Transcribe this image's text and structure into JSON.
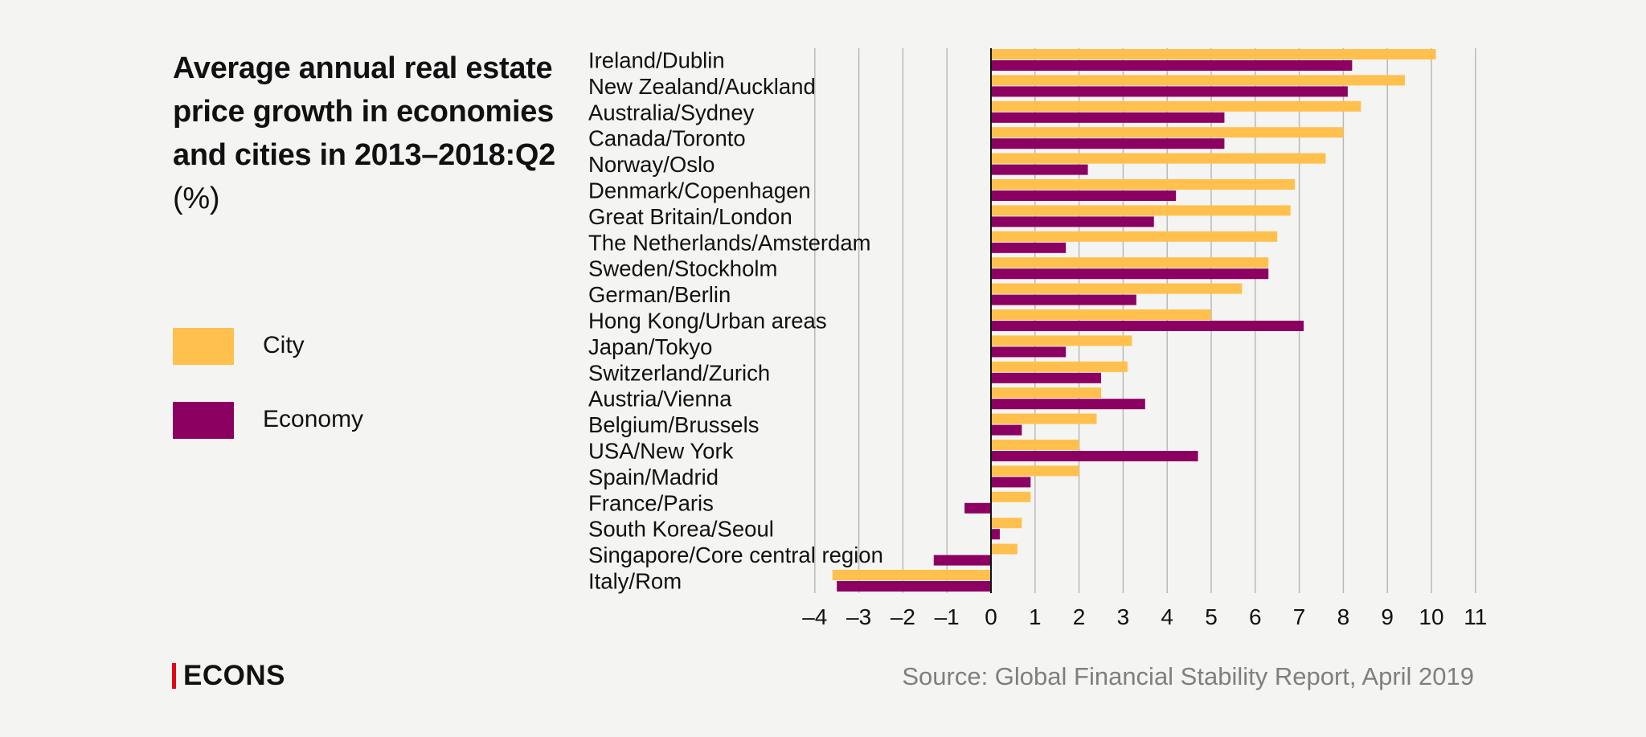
{
  "title": {
    "main": "Average annual real estate price growth in economies and cities in 2013–2018:Q2",
    "unit": "(%)"
  },
  "legend": {
    "city": "City",
    "economy": "Economy"
  },
  "colors": {
    "city": "#ffc04d",
    "economy": "#8c0061",
    "grid": "#b9b9b9",
    "background": "#f4f4f2",
    "logo_accent": "#e30613"
  },
  "logo": "ECONS",
  "source": "Source: Global Financial Stability Report, April 2019",
  "chart_data": {
    "type": "bar",
    "orientation": "horizontal",
    "categories": [
      "Ireland/Dublin",
      "New Zealand/Auckland",
      "Australia/Sydney",
      "Canada/Toronto",
      "Norway/Oslo",
      "Denmark/Copenhagen",
      "Great Britain/London",
      "The Netherlands/Amsterdam",
      "Sweden/Stockholm",
      "German/Berlin",
      "Hong Kong/Urban areas",
      "Japan/Tokyo",
      "Switzerland/Zurich",
      "Austria/Vienna",
      "Belgium/Brussels",
      "USA/New York",
      "Spain/Madrid",
      "France/Paris",
      "South Korea/Seoul",
      "Singapore/Core central region",
      "Italy/Rom"
    ],
    "series": [
      {
        "name": "City",
        "values": [
          10.1,
          9.4,
          8.4,
          8.0,
          7.6,
          6.9,
          6.8,
          6.5,
          6.3,
          5.7,
          5.0,
          3.2,
          3.1,
          2.5,
          2.4,
          2.0,
          2.0,
          0.9,
          0.7,
          0.6,
          -3.6
        ]
      },
      {
        "name": "Economy",
        "values": [
          8.2,
          8.1,
          5.3,
          5.3,
          2.2,
          4.2,
          3.7,
          1.7,
          6.3,
          3.3,
          7.1,
          1.7,
          2.5,
          3.5,
          0.7,
          4.7,
          0.9,
          -0.6,
          0.2,
          -1.3,
          -3.5
        ]
      }
    ],
    "xlim": [
      -4,
      11
    ],
    "xticks": [
      "–4",
      "–3",
      "–2",
      "–1",
      "0",
      "1",
      "2",
      "3",
      "4",
      "5",
      "6",
      "7",
      "8",
      "9",
      "10",
      "11"
    ],
    "grid": true,
    "legend_position": "left"
  }
}
